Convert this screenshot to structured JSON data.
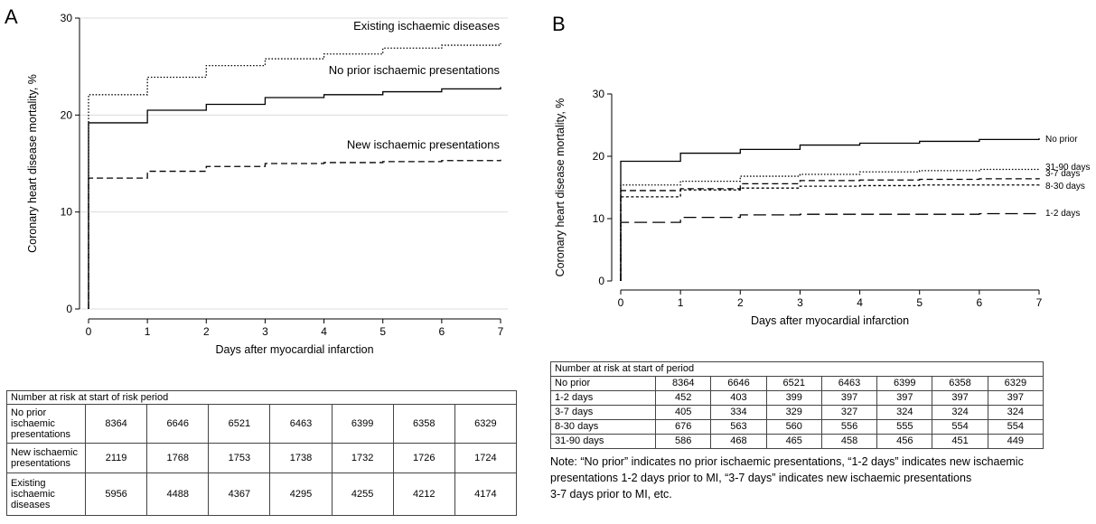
{
  "chart_data": [
    {
      "type": "line",
      "panel": "A",
      "title": "",
      "xlabel": "Days after myocardial infarction",
      "ylabel": "Coronary heart disease mortality, %",
      "xlim": [
        0,
        7
      ],
      "ylim": [
        0,
        30
      ],
      "xticks": [
        0,
        1,
        2,
        3,
        4,
        5,
        6,
        7
      ],
      "yticks": [
        0,
        10,
        20,
        30
      ],
      "grid": true,
      "step": true,
      "series": [
        {
          "name": "Existing ischaemic diseases",
          "style": "dotted",
          "x": [
            0,
            1,
            2,
            3,
            4,
            5,
            6,
            7
          ],
          "y": [
            22.1,
            23.9,
            25.1,
            25.8,
            26.3,
            26.9,
            27.2,
            27.4
          ]
        },
        {
          "name": "No prior ischaemic presentations",
          "style": "solid",
          "x": [
            0,
            1,
            2,
            3,
            4,
            5,
            6,
            7
          ],
          "y": [
            19.2,
            20.5,
            21.1,
            21.8,
            22.1,
            22.4,
            22.7,
            22.9
          ]
        },
        {
          "name": "New ischaemic presentations",
          "style": "dashed",
          "x": [
            0,
            1,
            2,
            3,
            4,
            5,
            6,
            7
          ],
          "y": [
            13.5,
            14.2,
            14.7,
            15.0,
            15.1,
            15.2,
            15.3,
            15.4
          ]
        }
      ]
    },
    {
      "type": "line",
      "panel": "B",
      "title": "",
      "xlabel": "Days after myocardial infarction",
      "ylabel": "Coronary heart disease mortality, %",
      "xlim": [
        0,
        7
      ],
      "ylim": [
        0,
        30
      ],
      "xticks": [
        0,
        1,
        2,
        3,
        4,
        5,
        6,
        7
      ],
      "yticks": [
        0,
        10,
        20,
        30
      ],
      "grid": false,
      "step": true,
      "series": [
        {
          "name": "No prior",
          "style": "solid",
          "x": [
            0,
            1,
            2,
            3,
            4,
            5,
            6,
            7
          ],
          "y": [
            19.2,
            20.5,
            21.1,
            21.8,
            22.1,
            22.4,
            22.7,
            22.9
          ]
        },
        {
          "name": "31-90 days",
          "style": "dotted",
          "x": [
            0,
            1,
            2,
            3,
            4,
            5,
            6,
            7
          ],
          "y": [
            15.4,
            16.0,
            16.8,
            17.1,
            17.5,
            17.7,
            17.9,
            18.1
          ]
        },
        {
          "name": "3-7 days",
          "style": "dashed",
          "x": [
            0,
            1,
            2,
            3,
            4,
            5,
            6,
            7
          ],
          "y": [
            14.5,
            14.8,
            15.6,
            16.1,
            16.2,
            16.3,
            16.4,
            16.5
          ]
        },
        {
          "name": "8-30 days",
          "style": "shortdash",
          "x": [
            0,
            1,
            2,
            3,
            4,
            5,
            6,
            7
          ],
          "y": [
            13.5,
            14.6,
            14.9,
            15.2,
            15.3,
            15.4,
            15.4,
            15.5
          ]
        },
        {
          "name": "1-2 days",
          "style": "longdash",
          "x": [
            0,
            1,
            2,
            3,
            4,
            5,
            6,
            7
          ],
          "y": [
            9.4,
            10.2,
            10.6,
            10.7,
            10.7,
            10.7,
            10.8,
            10.9
          ]
        }
      ]
    }
  ],
  "panels": {
    "a_letter": "A",
    "b_letter": "B"
  },
  "table_a": {
    "caption": "Number at risk at start of risk period",
    "rows": [
      {
        "label": "No prior ischaemic presentations",
        "values": [
          "8364",
          "6646",
          "6521",
          "6463",
          "6399",
          "6358",
          "6329"
        ]
      },
      {
        "label": "New ischaemic presentations",
        "values": [
          "2119",
          "1768",
          "1753",
          "1738",
          "1732",
          "1726",
          "1724"
        ]
      },
      {
        "label": "Existing ischaemic diseases",
        "values": [
          "5956",
          "4488",
          "4367",
          "4295",
          "4255",
          "4212",
          "4174"
        ]
      }
    ]
  },
  "table_b": {
    "caption": "Number at risk at start of period",
    "rows": [
      {
        "label": "No prior",
        "values": [
          "8364",
          "6646",
          "6521",
          "6463",
          "6399",
          "6358",
          "6329"
        ]
      },
      {
        "label": "1-2 days",
        "values": [
          "452",
          "403",
          "399",
          "397",
          "397",
          "397",
          "397"
        ]
      },
      {
        "label": "3-7 days",
        "values": [
          "405",
          "334",
          "329",
          "327",
          "324",
          "324",
          "324"
        ]
      },
      {
        "label": "8-30 days",
        "values": [
          "676",
          "563",
          "560",
          "556",
          "555",
          "554",
          "554"
        ]
      },
      {
        "label": "31-90 days",
        "values": [
          "586",
          "468",
          "465",
          "458",
          "456",
          "451",
          "449"
        ]
      }
    ]
  },
  "note": {
    "line1": "Note: “No prior” indicates no prior ischaemic presentations, “1-2 days” indicates new ischaemic",
    "line2": "presentations 1-2 days prior to MI, “3-7 days” indicates new ischaemic presentations",
    "line3": "3-7 days prior to MI, etc."
  }
}
